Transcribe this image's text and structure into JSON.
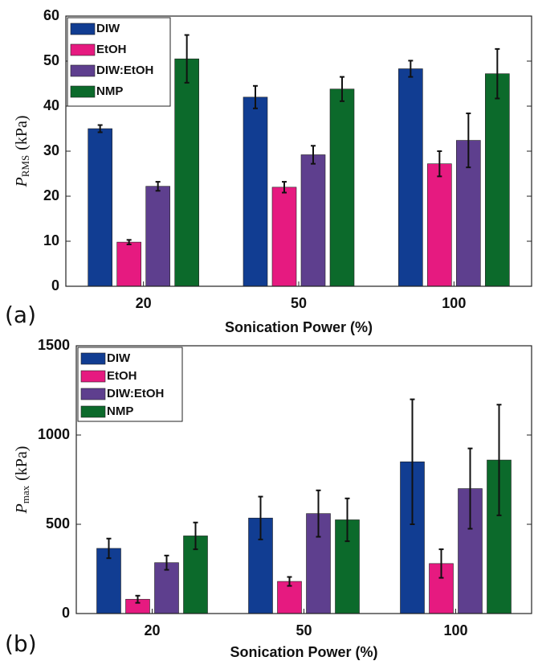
{
  "chart_data": [
    {
      "type": "bar",
      "panel_label": "(a)",
      "xlabel": "Sonication Power (%)",
      "ylabel": {
        "symbol": "P",
        "subscript": "RMS",
        "unit": "(kPa)"
      },
      "categories": [
        "20",
        "50",
        "100"
      ],
      "ylim": [
        0,
        60
      ],
      "yticks": [
        0,
        10,
        20,
        30,
        40,
        50,
        60
      ],
      "legend": "upper left",
      "series": [
        {
          "name": "DIW",
          "color": "#113d92",
          "values": [
            35,
            42,
            48.3
          ],
          "errors": [
            0.8,
            2.5,
            1.8
          ]
        },
        {
          "name": "EtOH",
          "color": "#e61a80",
          "values": [
            9.8,
            22,
            27.2
          ],
          "errors": [
            0.5,
            1.2,
            2.8
          ]
        },
        {
          "name": "DIW:EtOH",
          "color": "#5e3f8e",
          "values": [
            22.2,
            29.2,
            32.4
          ],
          "errors": [
            1,
            2,
            6
          ]
        },
        {
          "name": "NMP",
          "color": "#0c6a2b",
          "values": [
            50.5,
            43.8,
            47.2
          ],
          "errors": [
            5.3,
            2.7,
            5.5
          ]
        }
      ]
    },
    {
      "type": "bar",
      "panel_label": "(b)",
      "xlabel": "Sonication Power (%)",
      "ylabel": {
        "symbol": "P",
        "subscript": "max",
        "unit": "(kPa)"
      },
      "categories": [
        "20",
        "50",
        "100"
      ],
      "ylim": [
        0,
        1500
      ],
      "yticks": [
        0,
        500,
        1000,
        1500
      ],
      "legend": "upper left",
      "series": [
        {
          "name": "DIW",
          "color": "#113d92",
          "values": [
            365,
            535,
            850
          ],
          "errors": [
            55,
            120,
            350
          ]
        },
        {
          "name": "EtOH",
          "color": "#e61a80",
          "values": [
            80,
            180,
            280
          ],
          "errors": [
            20,
            25,
            80
          ]
        },
        {
          "name": "DIW:EtOH",
          "color": "#5e3f8e",
          "values": [
            285,
            560,
            700
          ],
          "errors": [
            40,
            130,
            225
          ]
        },
        {
          "name": "NMP",
          "color": "#0c6a2b",
          "values": [
            435,
            525,
            860
          ],
          "errors": [
            75,
            120,
            310
          ]
        }
      ]
    }
  ]
}
